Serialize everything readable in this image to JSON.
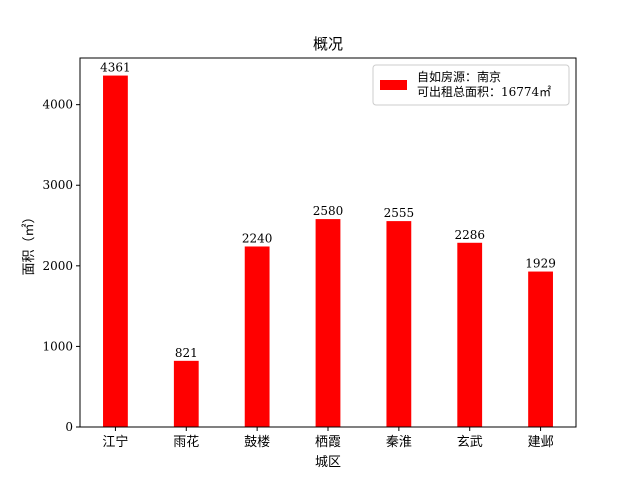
{
  "chart_data": {
    "type": "bar",
    "title": "概况",
    "xlabel": "城区",
    "ylabel": "面积（㎡）",
    "categories": [
      "江宁",
      "雨花",
      "鼓楼",
      "栖霞",
      "秦淮",
      "玄武",
      "建邺"
    ],
    "series": [
      {
        "name": "自如房源：南京\n可出租总面积：16774㎡",
        "values": [
          4361,
          821,
          2240,
          2580,
          2555,
          2286,
          1929
        ],
        "color": "#ff0000"
      }
    ],
    "data_labels": [
      "4361",
      "821",
      "2240",
      "2580",
      "2555",
      "2286",
      "1929"
    ],
    "yticks": [
      0,
      1000,
      2000,
      3000,
      4000
    ],
    "ylim": [
      0,
      4579
    ],
    "grid": false,
    "legend_position": "top-right",
    "legend_lines": [
      "自如房源：南京",
      "可出租总面积：16774㎡"
    ]
  }
}
